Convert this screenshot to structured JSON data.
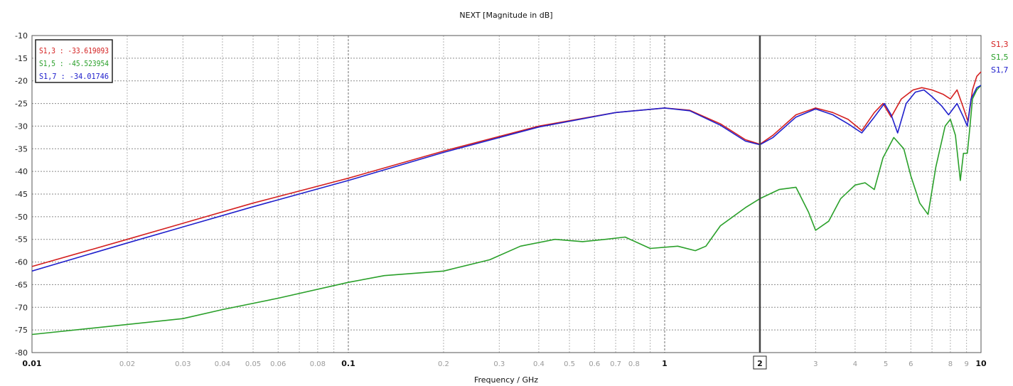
{
  "chart_data": {
    "type": "line",
    "title": "NEXT [Magnitude in dB]",
    "xlabel": "Frequency / GHz",
    "ylabel": "",
    "x_scale": "log",
    "xlim": [
      0.01,
      10
    ],
    "ylim": [
      -80,
      -10
    ],
    "grid": true,
    "legend_position": "top-left",
    "y_ticks": [
      "-10",
      "-15",
      "-20",
      "-25",
      "-30",
      "-35",
      "-40",
      "-45",
      "-50",
      "-55",
      "-60",
      "-65",
      "-70",
      "-75",
      "-80"
    ],
    "x_major_ticks": [
      {
        "value": 0.01,
        "label": "0.01"
      },
      {
        "value": 0.1,
        "label": "0.1"
      },
      {
        "value": 1,
        "label": "1"
      },
      {
        "value": 10,
        "label": "10"
      }
    ],
    "x_minor_ticks": [
      {
        "value": 0.02,
        "label": "0.02"
      },
      {
        "value": 0.03,
        "label": "0.03"
      },
      {
        "value": 0.04,
        "label": "0.04"
      },
      {
        "value": 0.05,
        "label": "0.05"
      },
      {
        "value": 0.06,
        "label": "0.06"
      },
      {
        "value": 0.08,
        "label": "0.08"
      },
      {
        "value": 0.2,
        "label": "0.2"
      },
      {
        "value": 0.3,
        "label": "0.3"
      },
      {
        "value": 0.4,
        "label": "0.4"
      },
      {
        "value": 0.5,
        "label": "0.5"
      },
      {
        "value": 0.6,
        "label": "0.6"
      },
      {
        "value": 0.7,
        "label": "0.7"
      },
      {
        "value": 0.8,
        "label": "0.8"
      },
      {
        "value": 3,
        "label": "3"
      },
      {
        "value": 4,
        "label": "4"
      },
      {
        "value": 5,
        "label": "5"
      },
      {
        "value": 6,
        "label": "6"
      },
      {
        "value": 8,
        "label": "8"
      },
      {
        "value": 9,
        "label": "9"
      }
    ],
    "marker": {
      "x": 2,
      "label": "2"
    },
    "series": [
      {
        "name": "S1,3",
        "legend_label": "S1,3 : -33.619093",
        "color": "#d42020",
        "points": [
          [
            0.01,
            -61
          ],
          [
            0.02,
            -55
          ],
          [
            0.05,
            -47
          ],
          [
            0.1,
            -41.5
          ],
          [
            0.2,
            -35.5
          ],
          [
            0.4,
            -30
          ],
          [
            0.7,
            -27
          ],
          [
            1.0,
            -26
          ],
          [
            1.2,
            -26.5
          ],
          [
            1.5,
            -29.5
          ],
          [
            1.8,
            -33
          ],
          [
            2.0,
            -34
          ],
          [
            2.2,
            -32
          ],
          [
            2.6,
            -27.5
          ],
          [
            3.0,
            -26
          ],
          [
            3.4,
            -27
          ],
          [
            3.8,
            -28.5
          ],
          [
            4.2,
            -31
          ],
          [
            4.6,
            -27
          ],
          [
            4.9,
            -25
          ],
          [
            5.2,
            -28
          ],
          [
            5.6,
            -24
          ],
          [
            6.1,
            -22
          ],
          [
            6.5,
            -21.5
          ],
          [
            7.0,
            -22
          ],
          [
            7.6,
            -23
          ],
          [
            8.0,
            -24
          ],
          [
            8.4,
            -22
          ],
          [
            8.8,
            -26
          ],
          [
            9.1,
            -29
          ],
          [
            9.4,
            -22
          ],
          [
            9.7,
            -19
          ],
          [
            10,
            -18
          ]
        ]
      },
      {
        "name": "S1,5",
        "legend_label": "S1,5 : -45.523954",
        "color": "#2aa02a",
        "points": [
          [
            0.01,
            -76
          ],
          [
            0.03,
            -72.5
          ],
          [
            0.04,
            -70.5
          ],
          [
            0.06,
            -68
          ],
          [
            0.1,
            -64.5
          ],
          [
            0.13,
            -63
          ],
          [
            0.2,
            -62
          ],
          [
            0.28,
            -59.5
          ],
          [
            0.35,
            -56.5
          ],
          [
            0.45,
            -55
          ],
          [
            0.55,
            -55.5
          ],
          [
            0.65,
            -55
          ],
          [
            0.75,
            -54.5
          ],
          [
            0.9,
            -57
          ],
          [
            1.1,
            -56.5
          ],
          [
            1.25,
            -57.5
          ],
          [
            1.35,
            -56.5
          ],
          [
            1.5,
            -52
          ],
          [
            1.8,
            -48
          ],
          [
            2.0,
            -46
          ],
          [
            2.3,
            -44
          ],
          [
            2.6,
            -43.5
          ],
          [
            2.85,
            -49
          ],
          [
            3.0,
            -53
          ],
          [
            3.3,
            -51
          ],
          [
            3.6,
            -46
          ],
          [
            4.0,
            -43
          ],
          [
            4.3,
            -42.5
          ],
          [
            4.6,
            -44
          ],
          [
            4.9,
            -37
          ],
          [
            5.3,
            -32.5
          ],
          [
            5.7,
            -35
          ],
          [
            6.0,
            -41
          ],
          [
            6.4,
            -47
          ],
          [
            6.8,
            -49.5
          ],
          [
            7.2,
            -39
          ],
          [
            7.7,
            -30
          ],
          [
            8.0,
            -28.5
          ],
          [
            8.3,
            -32
          ],
          [
            8.6,
            -42
          ],
          [
            8.8,
            -36
          ],
          [
            9.05,
            -36
          ],
          [
            9.2,
            -31
          ],
          [
            9.4,
            -24
          ],
          [
            9.7,
            -22
          ],
          [
            10,
            -21
          ]
        ]
      },
      {
        "name": "S1,7",
        "legend_label": "S1,7 : -34.01746",
        "color": "#2020cc",
        "points": [
          [
            0.01,
            -62
          ],
          [
            0.02,
            -55.8
          ],
          [
            0.05,
            -47.8
          ],
          [
            0.1,
            -42
          ],
          [
            0.2,
            -35.8
          ],
          [
            0.4,
            -30.2
          ],
          [
            0.7,
            -27
          ],
          [
            1.0,
            -26
          ],
          [
            1.2,
            -26.6
          ],
          [
            1.5,
            -29.8
          ],
          [
            1.8,
            -33.3
          ],
          [
            2.0,
            -34.1
          ],
          [
            2.2,
            -32.5
          ],
          [
            2.6,
            -28
          ],
          [
            3.0,
            -26.2
          ],
          [
            3.4,
            -27.5
          ],
          [
            3.8,
            -29.5
          ],
          [
            4.2,
            -31.5
          ],
          [
            4.6,
            -28
          ],
          [
            4.95,
            -25
          ],
          [
            5.2,
            -27.5
          ],
          [
            5.45,
            -31.5
          ],
          [
            5.8,
            -25
          ],
          [
            6.2,
            -22.5
          ],
          [
            6.6,
            -22
          ],
          [
            7.0,
            -23.5
          ],
          [
            7.5,
            -25.5
          ],
          [
            7.9,
            -27.5
          ],
          [
            8.4,
            -25
          ],
          [
            8.8,
            -28
          ],
          [
            9.05,
            -30
          ],
          [
            9.3,
            -24
          ],
          [
            9.7,
            -21.5
          ],
          [
            10,
            -21
          ]
        ]
      }
    ]
  }
}
